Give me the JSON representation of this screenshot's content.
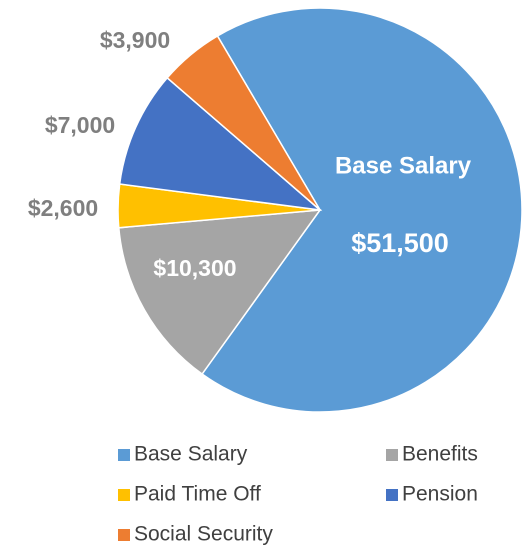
{
  "chart_data": {
    "type": "pie",
    "categories": [
      "Base Salary",
      "Benefits",
      "Paid Time Off",
      "Pension",
      "Social Security"
    ],
    "values": [
      51500,
      10300,
      2600,
      7000,
      3900
    ],
    "value_labels": [
      "$51,500",
      "$10,300",
      "$2,600",
      "$7,000",
      "$3,900"
    ],
    "colors": [
      "#5b9bd5",
      "#a5a5a5",
      "#ffc000",
      "#4472c4",
      "#ed7d31"
    ],
    "legend": "bottom"
  }
}
